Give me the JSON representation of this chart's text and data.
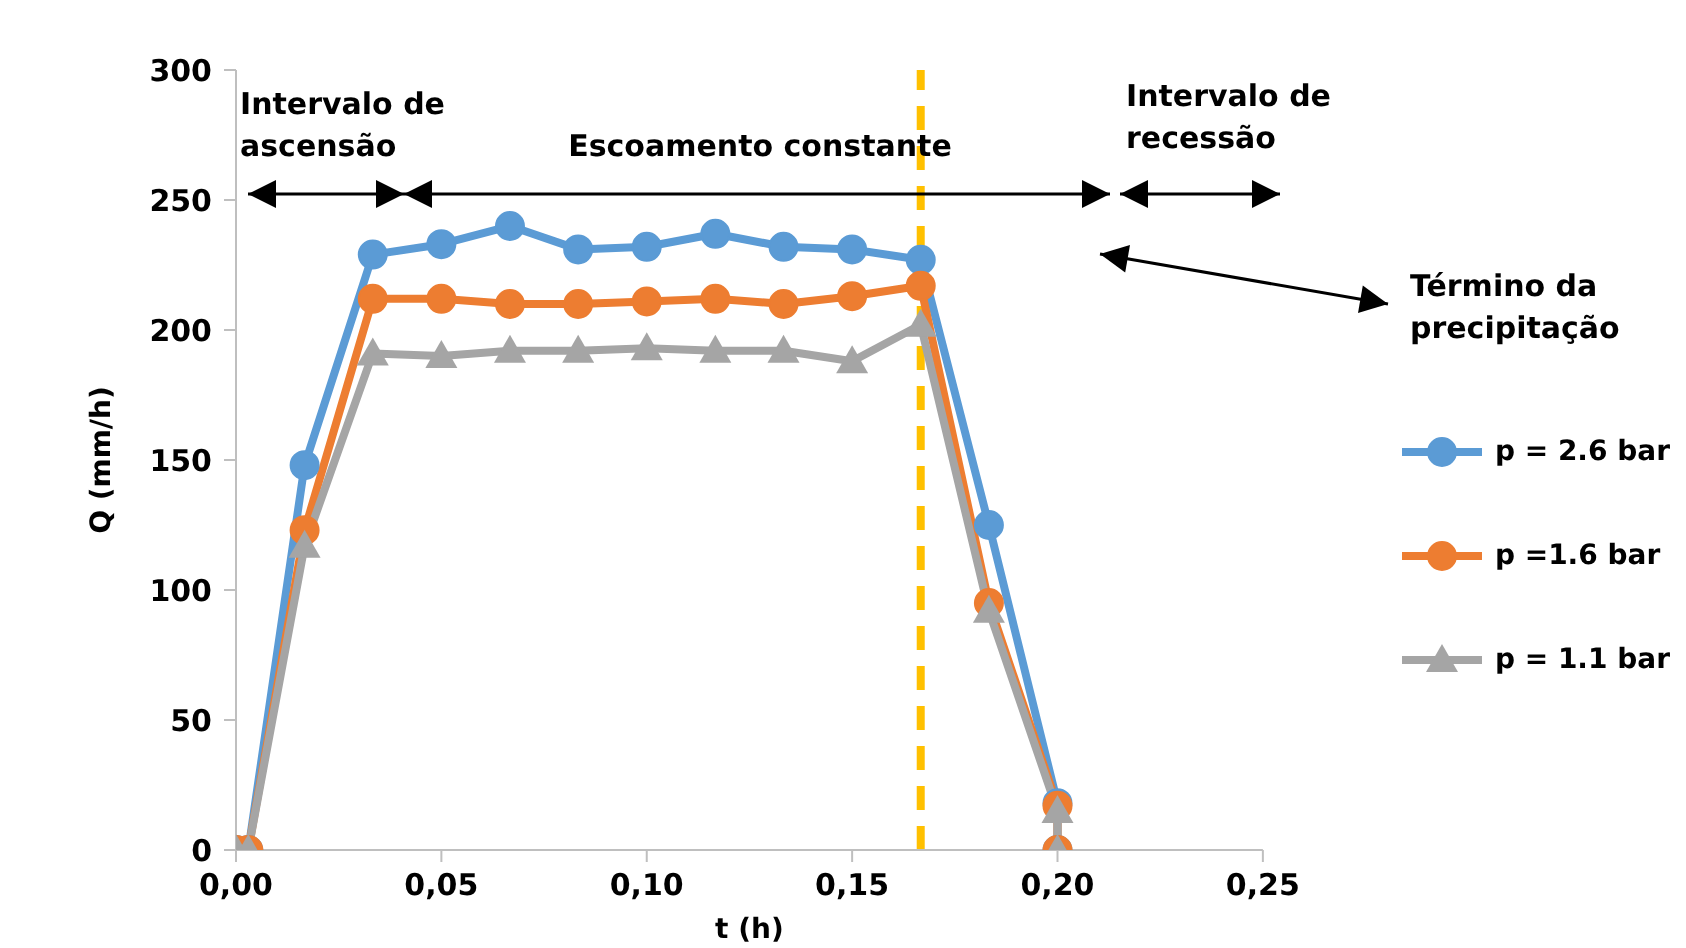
{
  "chart_data": {
    "type": "line",
    "xlabel": "t (h)",
    "ylabel": "Q (mm/h)",
    "xlim": [
      0,
      0.25
    ],
    "xticks": [
      {
        "value": 0,
        "label": "0,00"
      },
      {
        "value": 0.05,
        "label": "0,05"
      },
      {
        "value": 0.1,
        "label": "0,10"
      },
      {
        "value": 0.15,
        "label": "0,15"
      },
      {
        "value": 0.2,
        "label": "0,20"
      },
      {
        "value": 0.25,
        "label": "0,25"
      }
    ],
    "ylim": [
      0,
      300
    ],
    "yticks": [
      0,
      50,
      100,
      150,
      200,
      250,
      300
    ],
    "grid": false,
    "legend": "right",
    "line_style": "solid",
    "x": [
      0,
      0.003,
      0.0167,
      0.0333,
      0.05,
      0.0667,
      0.0833,
      0.1,
      0.1167,
      0.1333,
      0.15,
      0.1667,
      0.1833,
      0.2,
      0.2
    ],
    "series": [
      {
        "name": "p = 2.6 bar",
        "color": "#5b9bd5",
        "marker": "circle",
        "values": [
          0,
          0,
          148,
          229,
          233,
          240,
          231,
          232,
          237,
          232,
          231,
          227,
          125,
          18,
          0
        ]
      },
      {
        "name": "p =1.6 bar",
        "color": "#ed7d31",
        "marker": "circle",
        "values": [
          0,
          0,
          123,
          212,
          212,
          210,
          210,
          211,
          212,
          210,
          213,
          217,
          95,
          17,
          0
        ]
      },
      {
        "name": "p = 1.1 bar",
        "color": "#a5a5a5",
        "marker": "triangle",
        "values": [
          0,
          0,
          117,
          191,
          190,
          192,
          192,
          193,
          192,
          192,
          188,
          202,
          92,
          15,
          0
        ]
      }
    ],
    "ref_lines": [
      {
        "axis": "x",
        "value": 0.1667,
        "color": "#ffc000",
        "line_style": "dashed"
      }
    ],
    "annotations": [
      "Intervalo de ascensão",
      "Escoamento constante",
      "Intervalo de recessão",
      "Término da precipitação"
    ]
  }
}
